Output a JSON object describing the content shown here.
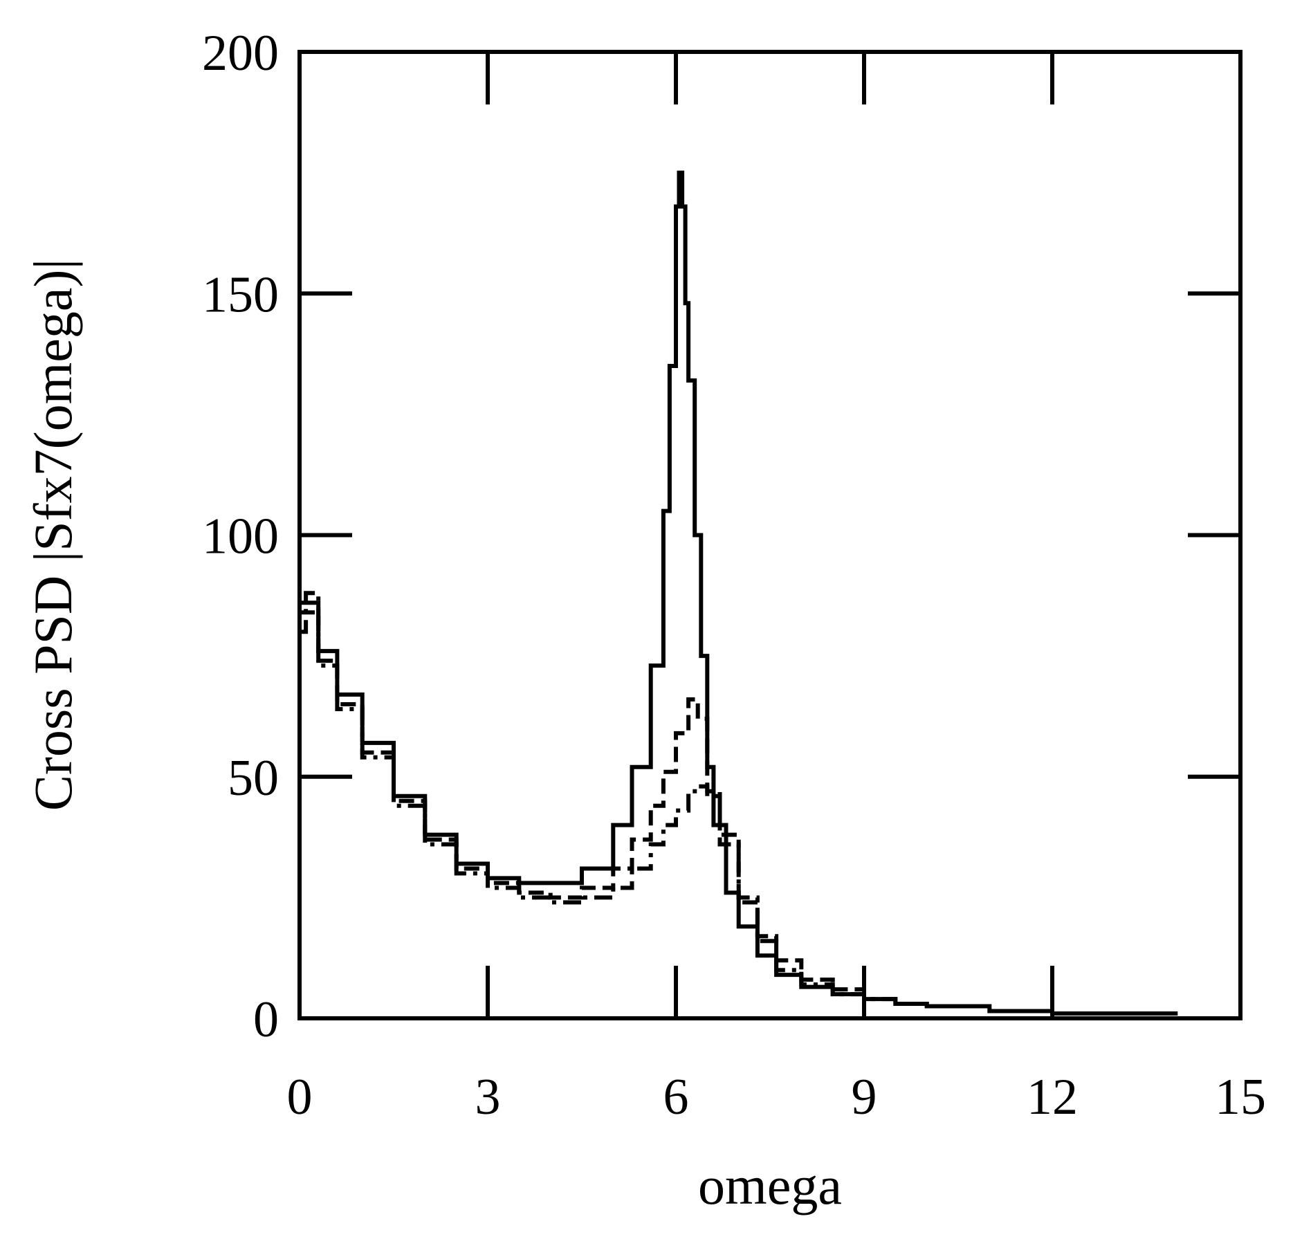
{
  "chart_data": {
    "type": "line",
    "title": "",
    "xlabel": "omega",
    "ylabel": "Cross PSD |Sfx7(omega)|",
    "xlim": [
      0,
      15
    ],
    "ylim": [
      0,
      200
    ],
    "xticks": [
      0,
      3,
      6,
      9,
      12,
      15
    ],
    "xtick_labels": [
      "0",
      "3",
      "6",
      "9",
      "12",
      "15"
    ],
    "yticks": [
      0,
      50,
      100,
      150,
      200
    ],
    "ytick_labels": [
      "0",
      "50",
      "100",
      "150",
      "200"
    ],
    "grid": false,
    "legend": "none",
    "colors": {
      "line": "#000000",
      "frame": "#000000",
      "background": "#ffffff"
    },
    "series": [
      {
        "name": "curve-1-solid",
        "style": "solid",
        "x": [
          0.0,
          0.3,
          0.6,
          1.0,
          1.5,
          2.0,
          2.5,
          3.0,
          3.5,
          4.0,
          4.5,
          5.0,
          5.3,
          5.6,
          5.8,
          5.9,
          6.0,
          6.05,
          6.1,
          6.15,
          6.2,
          6.3,
          6.4,
          6.5,
          6.6,
          6.8,
          7.0,
          7.3,
          7.6,
          8.0,
          8.5,
          9.0,
          9.5,
          10.0,
          11.0,
          12.0,
          13.0,
          14.0
        ],
        "y": [
          86,
          76,
          67,
          57,
          46,
          38,
          32,
          29,
          28,
          28,
          31,
          40,
          52,
          73,
          105,
          135,
          168,
          175,
          168,
          148,
          132,
          100,
          75,
          52,
          40,
          26,
          19,
          13,
          9,
          6.5,
          5,
          4,
          3,
          2.5,
          1.5,
          1,
          1,
          1
        ]
      },
      {
        "name": "curve-2-dashed",
        "style": "dashed",
        "x": [
          0.0,
          0.3,
          0.6,
          1.0,
          1.5,
          2.0,
          2.5,
          3.0,
          3.5,
          4.0,
          4.5,
          5.0,
          5.3,
          5.6,
          5.8,
          6.0,
          6.2,
          6.35,
          6.5,
          6.7,
          7.0,
          7.3,
          7.6,
          8.0,
          8.5,
          9.0
        ],
        "y": [
          84,
          74,
          65,
          55,
          45,
          37,
          31,
          28,
          26,
          25,
          27,
          31,
          37,
          44,
          51,
          59,
          66,
          62,
          47,
          38,
          24,
          17,
          12,
          8,
          6,
          4.5
        ]
      },
      {
        "name": "curve-3-dash-dot",
        "style": "dashdot",
        "x": [
          0.0,
          0.1,
          0.3,
          0.6,
          1.0,
          1.5,
          2.0,
          2.5,
          3.0,
          3.5,
          4.0,
          4.5,
          5.0,
          5.3,
          5.6,
          5.8,
          6.0,
          6.2,
          6.4,
          6.5,
          6.7,
          7.0,
          7.3,
          7.6,
          8.0,
          8.5,
          9.0,
          9.5,
          10.0
        ],
        "y": [
          80,
          88,
          73,
          64,
          54,
          44,
          36,
          30,
          27,
          25,
          24,
          25,
          27,
          31,
          36,
          40,
          43,
          47,
          48,
          46,
          36,
          25,
          16,
          10,
          7,
          5,
          4,
          3,
          2
        ]
      }
    ]
  }
}
